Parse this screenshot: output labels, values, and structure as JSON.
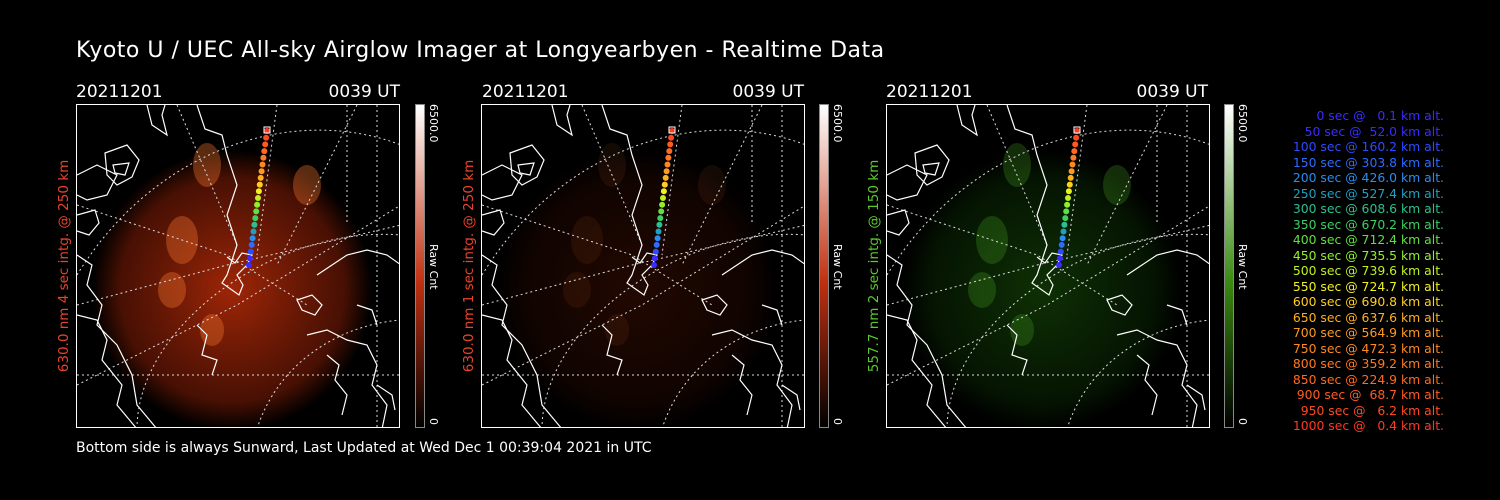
{
  "title": "Kyoto U / UEC All-sky Airglow Imager at Longyearbyen - Realtime Data",
  "footer": "Bottom side is always Sunward, Last Updated at Wed Dec  1 00:39:04 2021 in UTC",
  "colors": {
    "red_label": "#e8442a",
    "green_label": "#5cc92e"
  },
  "panels": [
    {
      "date": "20211201",
      "time": "0039 UT",
      "side_label": "630.0 nm 4 sec intg. @ 250 km",
      "cbar_max": "6500.0",
      "cbar_unit": "Raw Cnt",
      "cbar_min": "0",
      "scheme": "red",
      "glow_intensity": 1.0
    },
    {
      "date": "20211201",
      "time": "0039 UT",
      "side_label": "630.0 nm 1 sec intg. @ 250 km",
      "cbar_max": "6500.0",
      "cbar_unit": "Raw Cnt",
      "cbar_min": "0",
      "scheme": "red",
      "glow_intensity": 0.22
    },
    {
      "date": "20211201",
      "time": "0039 UT",
      "side_label": "557.7 nm 2 sec intg. @ 150 km",
      "cbar_max": "6500.0",
      "cbar_unit": "Raw Cnt",
      "cbar_min": "0",
      "scheme": "green",
      "glow_intensity": 0.6
    }
  ],
  "trajectory_legend": [
    {
      "text": "0 sec @   0.1 km alt.",
      "color": "#3a2cff"
    },
    {
      "text": "50 sec @  52.0 km alt.",
      "color": "#3a2cff"
    },
    {
      "text": "100 sec @ 160.2 km alt.",
      "color": "#2b4cff"
    },
    {
      "text": "150 sec @ 303.8 km alt.",
      "color": "#2c6cff"
    },
    {
      "text": "200 sec @ 426.0 km alt.",
      "color": "#2c8cf0"
    },
    {
      "text": "250 sec @ 527.4 km alt.",
      "color": "#20a0c0"
    },
    {
      "text": "300 sec @ 608.6 km alt.",
      "color": "#2cc090"
    },
    {
      "text": "350 sec @ 670.2 km alt.",
      "color": "#3cd060"
    },
    {
      "text": "400 sec @ 712.4 km alt.",
      "color": "#60e040"
    },
    {
      "text": "450 sec @ 735.5 km alt.",
      "color": "#90f030"
    },
    {
      "text": "500 sec @ 739.6 km alt.",
      "color": "#c0f020"
    },
    {
      "text": "550 sec @ 724.7 km alt.",
      "color": "#f0f020"
    },
    {
      "text": "600 sec @ 690.8 km alt.",
      "color": "#ffd020"
    },
    {
      "text": "650 sec @ 637.6 km alt.",
      "color": "#ffb020"
    },
    {
      "text": "700 sec @ 564.9 km alt.",
      "color": "#ff9a20"
    },
    {
      "text": "750 sec @ 472.3 km alt.",
      "color": "#ff8820"
    },
    {
      "text": "800 sec @ 359.2 km alt.",
      "color": "#ff7a20"
    },
    {
      "text": "850 sec @ 224.9 km alt.",
      "color": "#ff6a20"
    },
    {
      "text": "900 sec @  68.7 km alt.",
      "color": "#ff5a20"
    },
    {
      "text": "950 sec @   6.2 km alt.",
      "color": "#ff4a20"
    },
    {
      "text": "1000 sec @   0.4 km alt.",
      "color": "#ff3a20"
    }
  ]
}
